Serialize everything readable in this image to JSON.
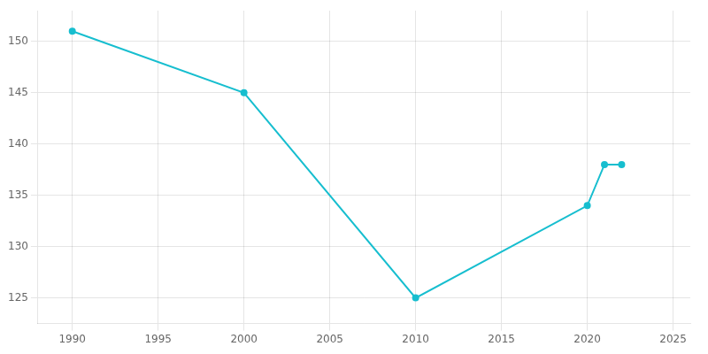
{
  "chart_data": {
    "type": "line",
    "x": [
      1990,
      2000,
      2010,
      2020,
      2021,
      2022
    ],
    "values": [
      151,
      145,
      125,
      134,
      138,
      138
    ],
    "color": "#17becf",
    "marker": "circle",
    "xlim": [
      1988,
      2026
    ],
    "ylim": [
      122.5,
      153
    ],
    "xticks": [
      1990,
      1995,
      2000,
      2005,
      2010,
      2015,
      2020,
      2025
    ],
    "yticks": [
      125,
      130,
      135,
      140,
      145,
      150
    ],
    "grid": true
  }
}
